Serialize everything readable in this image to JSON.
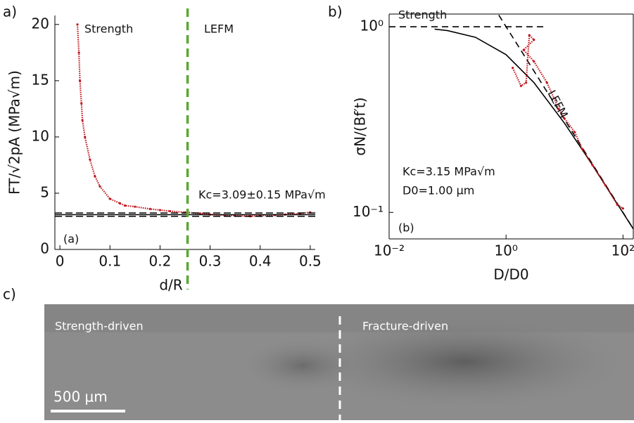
{
  "chart_data": [
    {
      "type": "line",
      "panel": "a)",
      "x_label": "d/R",
      "y_label": "FT/√2pA (MPa√m)",
      "xlim": [
        -0.01,
        0.51
      ],
      "ylim": [
        0,
        20.8
      ],
      "xticks": [
        0,
        0.1,
        0.2,
        0.3,
        0.4,
        0.5
      ],
      "yticks": [
        0,
        5,
        10,
        15,
        20
      ],
      "series": [
        {
          "color": "#c0141c",
          "style": "dots",
          "x": [
            0.035,
            0.038,
            0.04,
            0.043,
            0.045,
            0.05,
            0.06,
            0.07,
            0.08,
            0.1,
            0.12,
            0.13,
            0.15,
            0.18,
            0.2,
            0.22,
            0.25,
            0.28,
            0.3,
            0.33,
            0.35,
            0.38,
            0.4,
            0.43,
            0.45,
            0.48,
            0.5
          ],
          "values": [
            20,
            17.5,
            15,
            13,
            11.5,
            10,
            8,
            6.5,
            5.6,
            4.5,
            4.1,
            3.9,
            3.8,
            3.6,
            3.5,
            3.4,
            3.3,
            3.2,
            3.1,
            3.05,
            3.0,
            2.95,
            3.0,
            3.05,
            3.1,
            3.2,
            3.3
          ]
        }
      ],
      "reference": {
        "value": 3.09,
        "error": 0.15,
        "label": "Kc=3.09±0.15 MPa√m"
      },
      "vline": {
        "x": 0.255,
        "color": "#5aa832"
      },
      "annotations": [
        "Strength",
        "LEFM",
        "(a)"
      ]
    },
    {
      "type": "line",
      "panel": "b)",
      "log_x": true,
      "log_y": true,
      "x_label": "D/D0",
      "y_label": "σN/(Bf′t)",
      "xlim": [
        0.01,
        150
      ],
      "ylim": [
        0.072,
        1.17
      ],
      "xticks": [
        {
          "value": 0.01,
          "label": "10⁻²"
        },
        {
          "value": 1,
          "label": "10⁰"
        },
        {
          "value": 100,
          "label": "10²"
        }
      ],
      "yticks": [
        {
          "value": 0.1,
          "label": "10⁻¹"
        },
        {
          "value": 1,
          "label": "10⁰"
        }
      ],
      "series": [
        {
          "color": "#000000",
          "style": "solid",
          "x": [
            0.06,
            0.1,
            0.3,
            1,
            3,
            10,
            30,
            100,
            150
          ],
          "values": [
            0.971,
            0.953,
            0.877,
            0.707,
            0.5,
            0.302,
            0.18,
            0.0995,
            0.0815
          ]
        },
        {
          "color": "#000000",
          "style": "dashed",
          "x": [
            0.01,
            5
          ],
          "values": [
            1,
            1
          ]
        },
        {
          "color": "#000000",
          "style": "dashed",
          "x": [
            0.75,
            150
          ],
          "values": [
            1.155,
            0.0816
          ]
        },
        {
          "color": "#c0141c",
          "style": "dots",
          "x": [
            1.3,
            1.8,
            2.2,
            2.5,
            3,
            2,
            3,
            5,
            8,
            10,
            15,
            20,
            30,
            50,
            80,
            100
          ],
          "values": [
            0.6,
            0.48,
            0.5,
            0.9,
            0.85,
            0.75,
            0.65,
            0.5,
            0.36,
            0.32,
            0.27,
            0.22,
            0.18,
            0.14,
            0.11,
            0.105
          ]
        }
      ],
      "annotations": [
        "Strength",
        "LEFM",
        "Kc=3.15 MPa√m",
        "D0=1.00 μm",
        "(b)"
      ]
    }
  ],
  "micrograph": {
    "panel": "c)",
    "left_label": "Strength-driven",
    "right_label": "Fracture-driven",
    "scale_bar": "500 μm"
  }
}
